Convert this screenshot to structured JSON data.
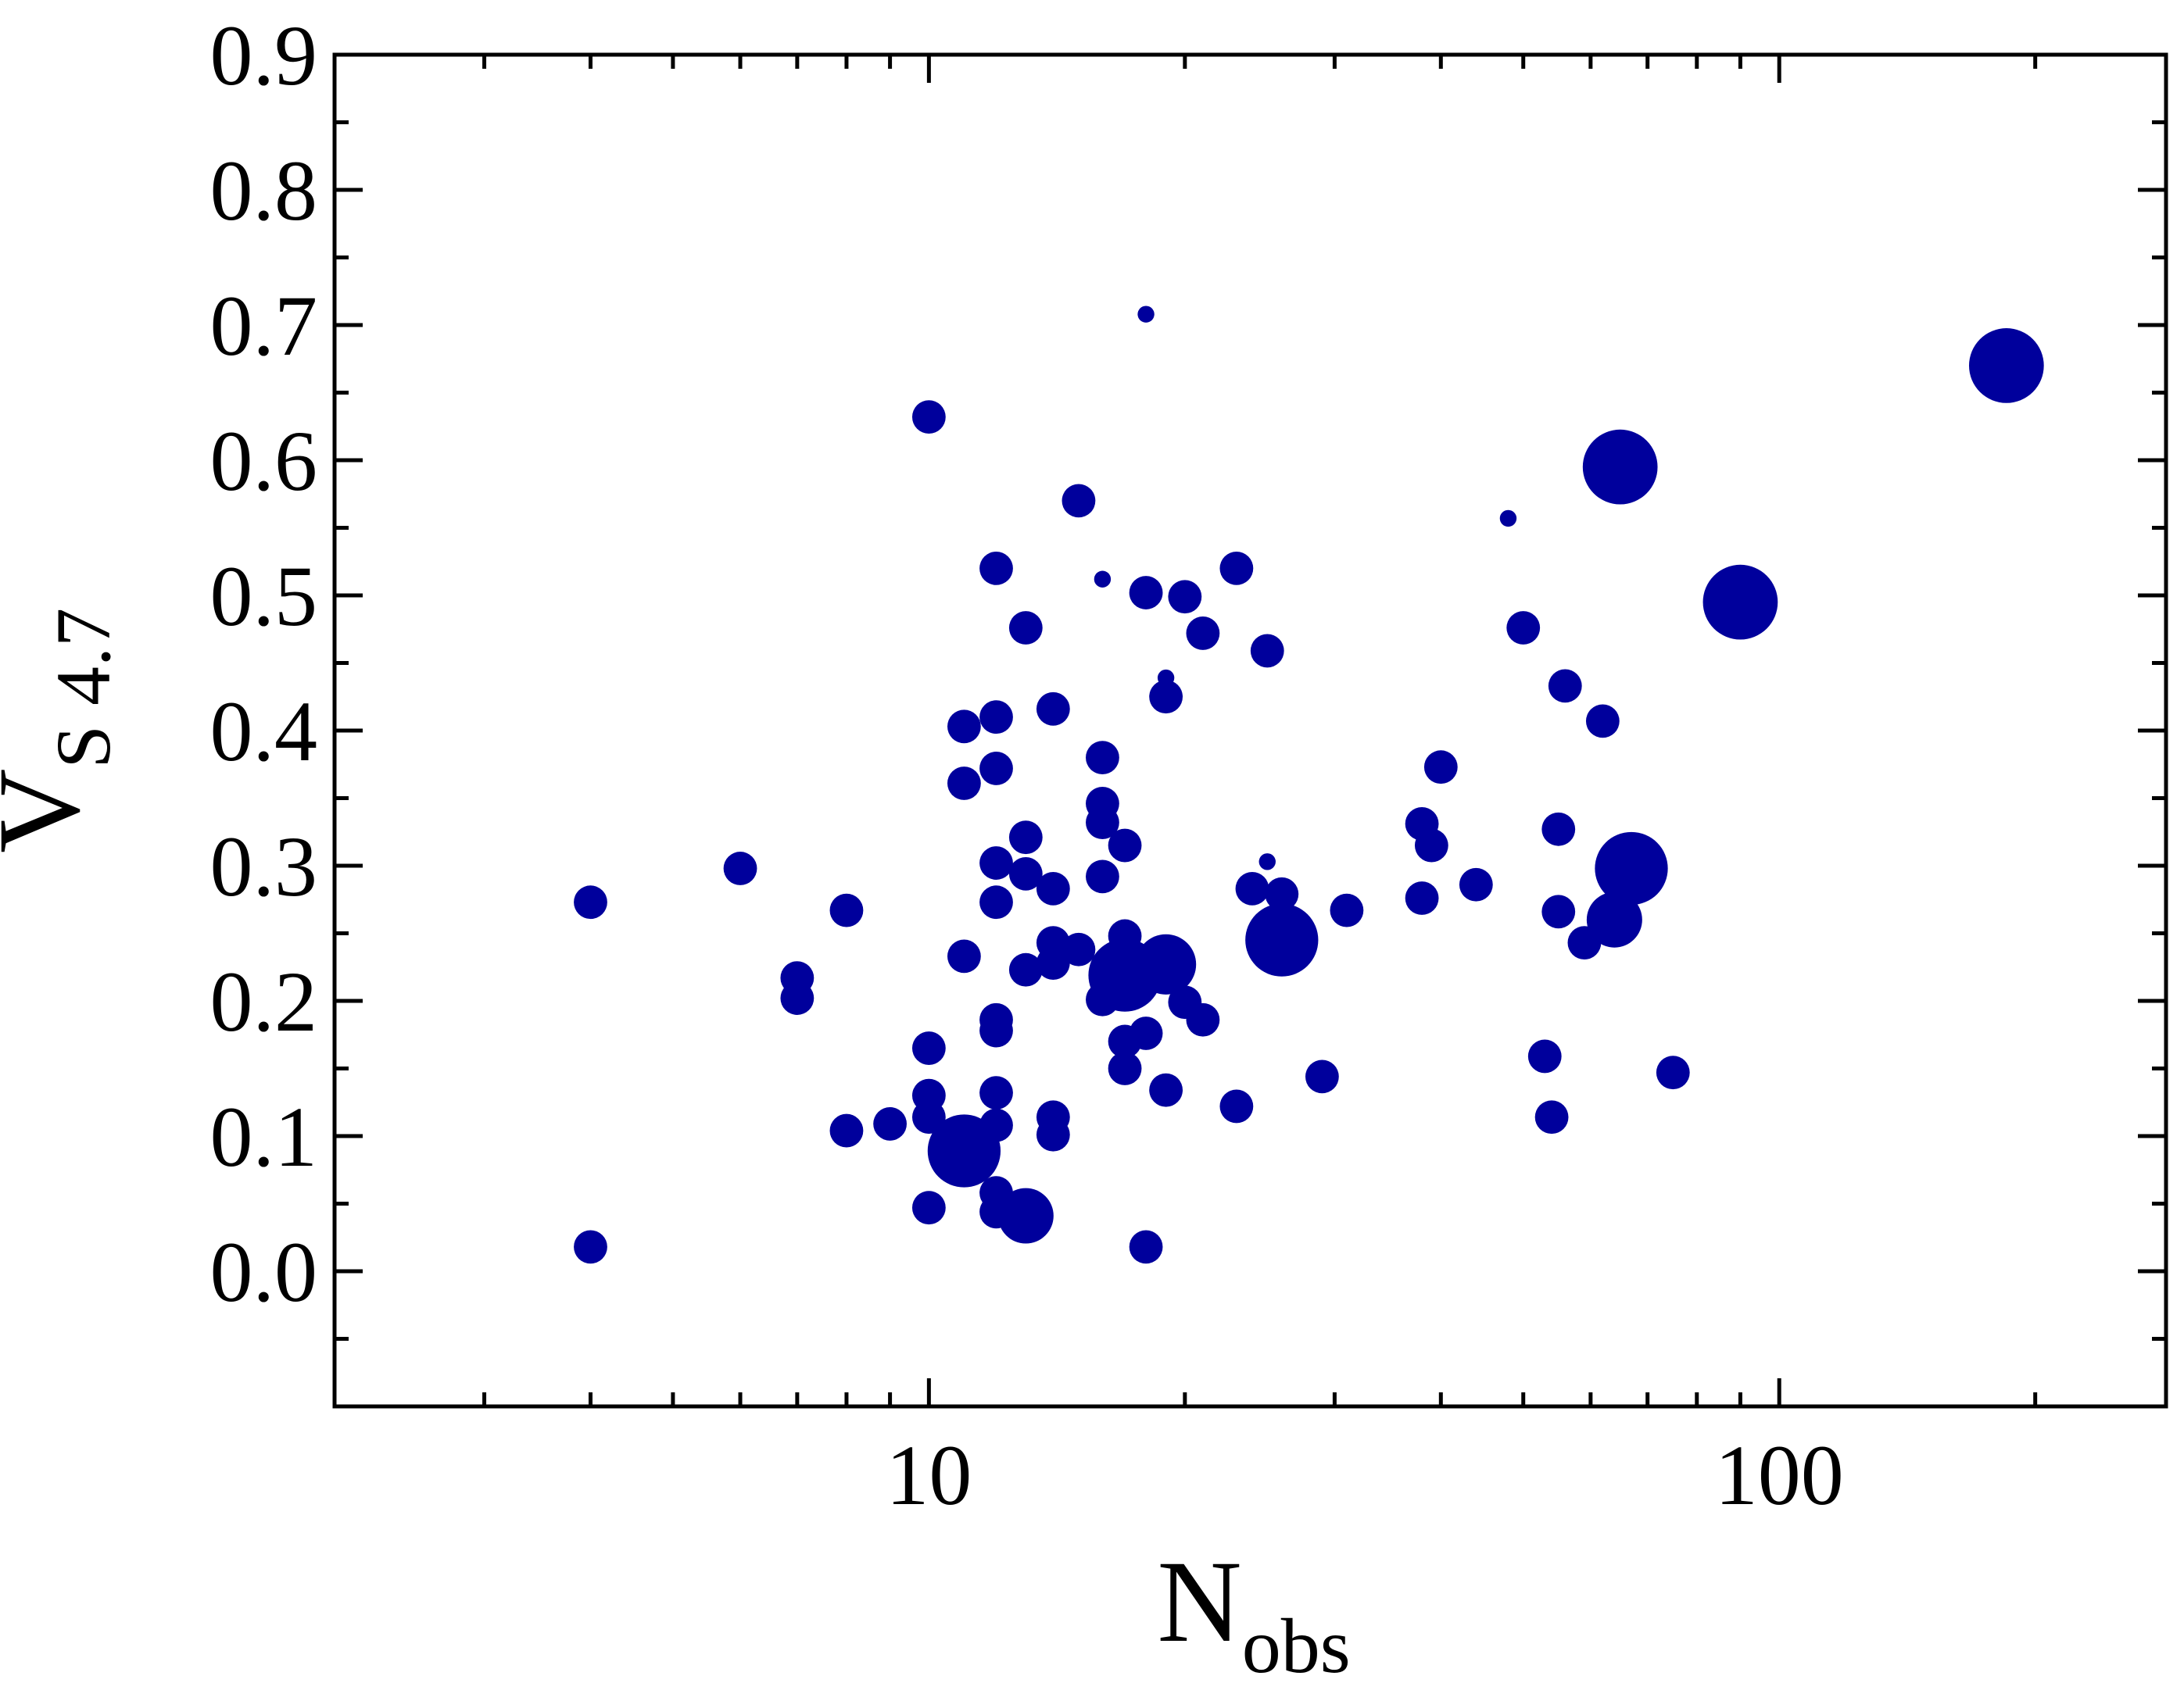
{
  "chart_data": {
    "type": "bubble",
    "xlabel": {
      "main": "N",
      "sub": "obs"
    },
    "ylabel": {
      "main": "V",
      "sub": "S 4.7"
    },
    "xlog": true,
    "xlim": [
      2,
      285
    ],
    "xticks": [
      10,
      100
    ],
    "xminor_ticks": [
      3,
      4,
      5,
      6,
      7,
      8,
      9,
      20,
      30,
      40,
      50,
      60,
      70,
      80,
      90,
      200
    ],
    "ylim": [
      -0.1,
      0.9
    ],
    "yticks": [
      {
        "value": 0,
        "label": "0.0"
      },
      0.1,
      0.2,
      0.3,
      0.4,
      0.5,
      0.6,
      0.7,
      0.8,
      0.9
    ],
    "yminor_ticks": [
      -0.05,
      0.05,
      0.15,
      0.25,
      0.35,
      0.45,
      0.55,
      0.65,
      0.75,
      0.85
    ],
    "color": "#00009c",
    "x": [
      4,
      4,
      6,
      7,
      7,
      8,
      8,
      9,
      10,
      10,
      10,
      10,
      10,
      11,
      11,
      11,
      11,
      12,
      12,
      12,
      12,
      12,
      12,
      12,
      12,
      12,
      12,
      12,
      13,
      13,
      13,
      13,
      13,
      14,
      14,
      14,
      14,
      14,
      14,
      15,
      15,
      16,
      16,
      16,
      16,
      16,
      16,
      17,
      17,
      17,
      17,
      17,
      18,
      18,
      18,
      18,
      19,
      19,
      19,
      19,
      20,
      20,
      21,
      21,
      23,
      23,
      24,
      25,
      25,
      26,
      26,
      29,
      31,
      38,
      38,
      39,
      40,
      44,
      48,
      50,
      53,
      54,
      55,
      55,
      56,
      59,
      62,
      64,
      65,
      67,
      75,
      90,
      185
    ],
    "y": [
      0.273,
      0.018,
      0.298,
      0.217,
      0.202,
      0.267,
      0.104,
      0.109,
      0.632,
      0.165,
      0.13,
      0.114,
      0.047,
      0.403,
      0.361,
      0.233,
      0.089,
      0.52,
      0.41,
      0.372,
      0.302,
      0.273,
      0.186,
      0.178,
      0.132,
      0.108,
      0.058,
      0.044,
      0.476,
      0.321,
      0.294,
      0.223,
      0.041,
      0.416,
      0.283,
      0.243,
      0.228,
      0.114,
      0.101,
      0.57,
      0.238,
      0.512,
      0.38,
      0.346,
      0.332,
      0.292,
      0.201,
      0.315,
      0.248,
      0.219,
      0.17,
      0.15,
      0.708,
      0.502,
      0.176,
      0.018,
      0.439,
      0.425,
      0.227,
      0.134,
      0.499,
      0.199,
      0.472,
      0.186,
      0.52,
      0.122,
      0.283,
      0.459,
      0.303,
      0.279,
      0.245,
      0.144,
      0.267,
      0.331,
      0.276,
      0.315,
      0.373,
      0.286,
      0.557,
      0.476,
      0.159,
      0.114,
      0.327,
      0.266,
      0.433,
      0.243,
      0.407,
      0.26,
      0.595,
      0.298,
      0.147,
      0.495,
      0.67
    ],
    "sizes": [
      4,
      4,
      4,
      4,
      4,
      4,
      4,
      4,
      4,
      4,
      4,
      4,
      4,
      4,
      4,
      4,
      19,
      4,
      4,
      4,
      4,
      4,
      4,
      4,
      4,
      4,
      4,
      4,
      4,
      4,
      4,
      4,
      11,
      4,
      4,
      4,
      4,
      4,
      4,
      4,
      4,
      1,
      4,
      4,
      4,
      4,
      4,
      4,
      4,
      19,
      4,
      4,
      1,
      4,
      4,
      4,
      1,
      4,
      13,
      4,
      4,
      4,
      4,
      4,
      4,
      4,
      4,
      4,
      1,
      4,
      19,
      4,
      4,
      4,
      4,
      4,
      4,
      4,
      1,
      4,
      4,
      4,
      4,
      4,
      4,
      4,
      4,
      11,
      20,
      19,
      4,
      20,
      20
    ]
  }
}
